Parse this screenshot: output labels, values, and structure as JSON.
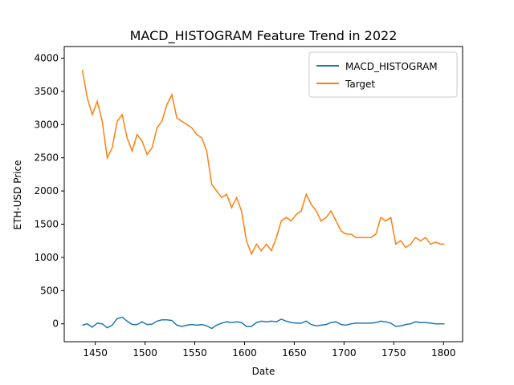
{
  "chart_data": {
    "type": "line",
    "title": "MACD_HISTOGRAM Feature Trend in 2022",
    "x_label": "Date",
    "y_label": "ETH-USD Price",
    "x": [
      1437,
      1442,
      1447,
      1452,
      1457,
      1462,
      1467,
      1472,
      1477,
      1482,
      1487,
      1492,
      1497,
      1502,
      1507,
      1512,
      1517,
      1522,
      1527,
      1532,
      1537,
      1542,
      1547,
      1552,
      1557,
      1562,
      1567,
      1572,
      1577,
      1582,
      1587,
      1592,
      1597,
      1602,
      1607,
      1612,
      1617,
      1622,
      1627,
      1632,
      1637,
      1642,
      1647,
      1652,
      1657,
      1662,
      1667,
      1672,
      1677,
      1682,
      1687,
      1692,
      1697,
      1702,
      1707,
      1712,
      1717,
      1722,
      1727,
      1732,
      1737,
      1742,
      1747,
      1752,
      1757,
      1762,
      1767,
      1772,
      1777,
      1782,
      1787,
      1792,
      1797,
      1801
    ],
    "series": [
      {
        "name": "MACD_HISTOGRAM",
        "color": "#1f77b4",
        "values": [
          -20,
          0,
          -50,
          10,
          0,
          -60,
          -20,
          80,
          100,
          40,
          -10,
          -10,
          30,
          -10,
          -5,
          40,
          60,
          60,
          50,
          -20,
          -40,
          -20,
          -10,
          -20,
          -10,
          -30,
          -70,
          -20,
          10,
          30,
          20,
          30,
          20,
          -40,
          -40,
          20,
          40,
          30,
          40,
          30,
          70,
          40,
          20,
          10,
          10,
          40,
          -10,
          -30,
          -20,
          -10,
          20,
          30,
          -10,
          -20,
          0,
          10,
          10,
          10,
          10,
          20,
          40,
          30,
          10,
          -40,
          -30,
          -10,
          0,
          30,
          20,
          20,
          10,
          0,
          0,
          0
        ]
      },
      {
        "name": "Target",
        "color": "#ff7f0e",
        "values": [
          3820,
          3400,
          3150,
          3350,
          3050,
          2500,
          2650,
          3050,
          3150,
          2800,
          2600,
          2850,
          2750,
          2550,
          2650,
          2950,
          3050,
          3300,
          3450,
          3100,
          3050,
          3000,
          2950,
          2850,
          2800,
          2600,
          2100,
          2000,
          1900,
          1950,
          1750,
          1900,
          1700,
          1250,
          1050,
          1200,
          1100,
          1200,
          1100,
          1300,
          1550,
          1600,
          1550,
          1650,
          1700,
          1950,
          1800,
          1700,
          1550,
          1600,
          1700,
          1550,
          1400,
          1350,
          1350,
          1300,
          1300,
          1300,
          1300,
          1350,
          1600,
          1550,
          1600,
          1200,
          1250,
          1150,
          1200,
          1300,
          1250,
          1300,
          1200,
          1230,
          1200,
          1200
        ]
      }
    ],
    "xlim": [
      1418.8,
      1819.2
    ],
    "ylim": [
      -269,
      4175
    ],
    "xticks": [
      1450,
      1500,
      1550,
      1600,
      1650,
      1700,
      1750,
      1800
    ],
    "yticks": [
      0,
      500,
      1000,
      1500,
      2000,
      2500,
      3000,
      3500,
      4000
    ],
    "legend": "upper right"
  }
}
